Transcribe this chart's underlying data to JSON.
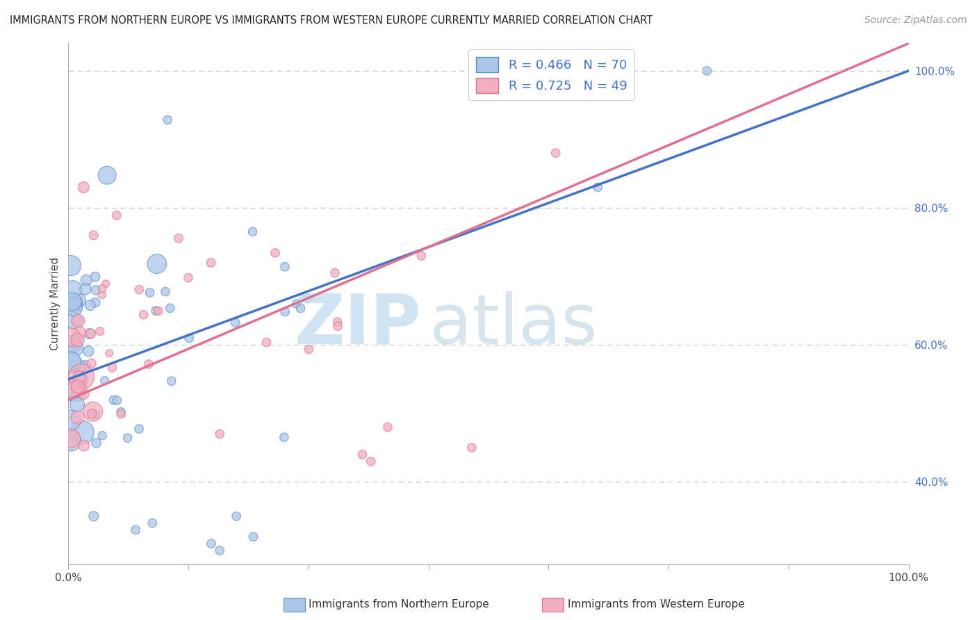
{
  "title": "IMMIGRANTS FROM NORTHERN EUROPE VS IMMIGRANTS FROM WESTERN EUROPE CURRENTLY MARRIED CORRELATION CHART",
  "source": "Source: ZipAtlas.com",
  "ylabel": "Currently Married",
  "right_ytick_vals": [
    40,
    60,
    80,
    100
  ],
  "right_ytick_labels": [
    "40.0%",
    "60.0%",
    "80.0%",
    "100.0%"
  ],
  "legend_label1": "R = 0.466   N = 70",
  "legend_label2": "R = 0.725   N = 49",
  "legend_label1_r": "R = 0.466",
  "legend_label1_n": "N = 70",
  "legend_label2_r": "R = 0.725",
  "legend_label2_n": "N = 49",
  "bottom_label1": "Immigrants from Northern Europe",
  "bottom_label2": "Immigrants from Western Europe",
  "color_blue_fill": "#adc6e8",
  "color_blue_edge": "#5b8fc9",
  "color_pink_fill": "#f2afc0",
  "color_pink_edge": "#e07090",
  "line_blue_color": "#4472c4",
  "line_pink_color": "#e07090",
  "watermark_zip_color": "#c8dff2",
  "watermark_atlas_color": "#c8dce8",
  "grid_color": "#c8c8d0",
  "bg_color": "#ffffff",
  "xlim": [
    0,
    100
  ],
  "ylim": [
    28,
    104
  ],
  "blue_line": [
    0,
    55,
    100,
    100
  ],
  "pink_line": [
    0,
    52,
    100,
    104
  ],
  "xtick_positions": [
    0,
    14.3,
    28.6,
    42.9,
    57.1,
    71.4,
    85.7,
    100
  ],
  "xtick_labels_show": [
    "0.0%",
    "",
    "",
    "",
    "",
    "",
    "",
    "100.0%"
  ]
}
